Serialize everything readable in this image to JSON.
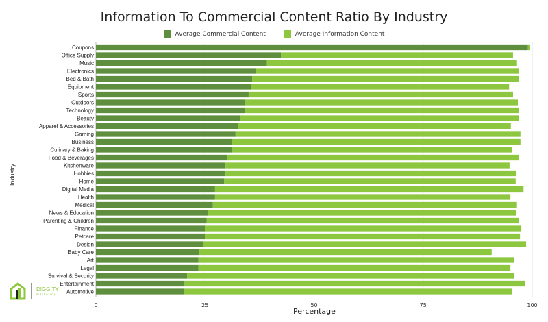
{
  "chart_data": {
    "type": "bar",
    "orientation": "horizontal",
    "stacked": true,
    "title": "Information To Commercial Content Ratio By Industry",
    "xlabel": "Percentage",
    "ylabel": "Industry",
    "xlim": [
      0,
      100
    ],
    "xticks": [
      "0",
      "25",
      "50",
      "75",
      "100"
    ],
    "grid": true,
    "legend_position": "top",
    "categories": [
      "Coupons",
      "Office Supply",
      "Music",
      "Electronics",
      "Bed & Bath",
      "Equipment",
      "Sports",
      "Outdoors",
      "Technology",
      "Beauty",
      "Apparel & Accessories",
      "Gaming",
      "Business",
      "Culinary & Baking",
      "Food & Beverages",
      "Kitchenware",
      "Hobbies",
      "Home",
      "Digital Media",
      "Health",
      "Medical",
      "News & Education",
      "Parenting & Children",
      "Finance",
      "Petcare",
      "Design",
      "Baby Care",
      "Art",
      "Legal",
      "Survival & Security",
      "Entertainment",
      "Automotive"
    ],
    "series": [
      {
        "name": "Average Commercial Content",
        "color": "#5f8f3e",
        "values": [
          99.0,
          42.4,
          39.2,
          36.7,
          35.8,
          35.6,
          35.0,
          34.1,
          34.1,
          33.0,
          32.5,
          32.0,
          31.2,
          31.1,
          30.1,
          29.7,
          29.7,
          29.4,
          27.3,
          27.3,
          26.8,
          25.6,
          25.4,
          25.1,
          25.0,
          24.5,
          23.7,
          23.5,
          23.5,
          20.9,
          20.3,
          20.1
        ]
      },
      {
        "name": "Average Information Content",
        "color": "#8dc63f",
        "values": [
          0.4,
          53.2,
          57.3,
          60.3,
          61.1,
          59.1,
          60.6,
          62.6,
          62.9,
          64.0,
          62.6,
          65.3,
          66.1,
          64.3,
          66.9,
          65.1,
          66.7,
          66.8,
          70.7,
          67.7,
          69.7,
          70.8,
          71.6,
          72.4,
          72.2,
          74.1,
          67.0,
          72.3,
          71.5,
          74.9,
          78.0,
          75.2
        ]
      }
    ]
  },
  "logo": {
    "name": "DIGGITY",
    "sub": "marketing"
  }
}
